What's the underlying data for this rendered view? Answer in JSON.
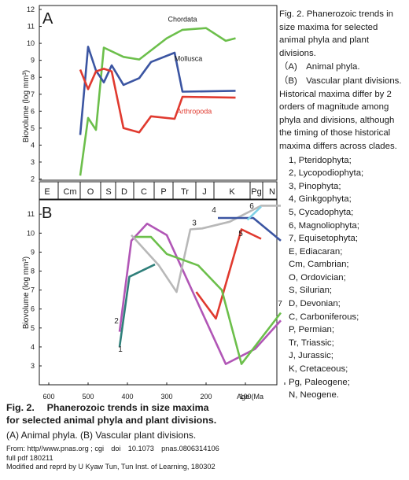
{
  "caption": {
    "title": "Fig. 2. Phanerozoic trends in size maxima for selected animal phyla and plant divisions.",
    "a": "（A)　Animal phyla.",
    "b": "（B)　Vascular plant divisions. Historical maxima differ by 2 orders of magnitude among phyla and divisions, although the timing of those historical maxima differs across clades."
  },
  "legend_items": [
    "1, Pteridophyta;",
    "2, Lycopodiophyta;",
    "3, Pinophyta;",
    "4, Ginkgophyta;",
    "5, Cycadophyta;",
    "6, Magnoliophyta;",
    "7, Equisetophyta;",
    "E, Ediacaran;",
    "Cm, Cambrian;",
    "O, Ordovician;",
    "S, Silurian;",
    "D, Devonian;",
    "C, Carboniferous;",
    "P, Permian;",
    "Tr, Triassic;",
    "J, Jurassic;",
    "K, Cretaceous;",
    "Pg, Paleogene;",
    "N, Neogene."
  ],
  "bottom": {
    "title1": "Fig. 2.　 Phanerozoic trends in size maxima",
    "title2": "for selected animal phyla and plant divisions.",
    "subtitle": "(A) Animal phyla. (B) Vascular plant divisions.",
    "source1": "From: http//www.pnas.org ; cgi　doi　10.1073　pnas.0806314106",
    "source2": "full pdf 180211",
    "source3": "Modified and reprd by U Kyaw Tun, Tun Inst. of Learning, 180302"
  },
  "chart_data": [
    {
      "panel": "A",
      "type": "line",
      "ylabel": "Biovolume (log mm³)",
      "ylim": [
        2,
        12
      ],
      "yticks": [
        2,
        3,
        4,
        5,
        6,
        7,
        8,
        9,
        10,
        11,
        12
      ],
      "series": [
        {
          "name": "Chordata",
          "color": "#6cbf4b",
          "points": [
            [
              520,
              2.2
            ],
            [
              500,
              5.6
            ],
            [
              480,
              4.9
            ],
            [
              460,
              9.75
            ],
            [
              410,
              9.2
            ],
            [
              370,
              9.05
            ],
            [
              300,
              10.3
            ],
            [
              260,
              10.8
            ],
            [
              200,
              10.9
            ],
            [
              150,
              10.15
            ],
            [
              125,
              10.3
            ]
          ]
        },
        {
          "name": "Mollusca",
          "color": "#3b55a2",
          "points": [
            [
              520,
              4.6
            ],
            [
              500,
              9.8
            ],
            [
              480,
              8.4
            ],
            [
              460,
              7.7
            ],
            [
              440,
              8.7
            ],
            [
              410,
              7.55
            ],
            [
              370,
              7.95
            ],
            [
              340,
              8.9
            ],
            [
              280,
              9.45
            ],
            [
              260,
              7.15
            ],
            [
              125,
              7.2
            ]
          ]
        },
        {
          "name": "Arthropoda",
          "color": "#e03a2f",
          "points": [
            [
              520,
              8.45
            ],
            [
              500,
              7.3
            ],
            [
              480,
              8.35
            ],
            [
              460,
              8.5
            ],
            [
              440,
              8.35
            ],
            [
              410,
              5.0
            ],
            [
              370,
              4.75
            ],
            [
              340,
              5.7
            ],
            [
              280,
              5.55
            ],
            [
              260,
              6.85
            ],
            [
              125,
              6.8
            ]
          ]
        }
      ]
    },
    {
      "panel": "B",
      "type": "line",
      "ylabel": "Biovolume (log mm³)",
      "xlabel": "Age (Ma)",
      "ylim": [
        2.5,
        11.5
      ],
      "yticks": [
        3,
        4,
        5,
        6,
        7,
        8,
        9,
        10,
        11
      ],
      "xlim": [
        600,
        0
      ],
      "xticks": [
        600,
        500,
        400,
        300,
        200,
        100,
        0
      ],
      "eras": [
        "E",
        "Cm",
        "O",
        "S",
        "D",
        "C",
        "P",
        "Tr",
        "J",
        "K",
        "Pg",
        "N"
      ],
      "series": [
        {
          "name": "1",
          "color": "#2f7f7a",
          "points": [
            [
              420,
              4.0
            ],
            [
              395,
              7.7
            ],
            [
              330,
              8.35
            ]
          ]
        },
        {
          "name": "2",
          "color": "#b156b6",
          "points": [
            [
              420,
              4.8
            ],
            [
              390,
              9.6
            ],
            [
              350,
              10.5
            ],
            [
              300,
              9.9
            ],
            [
              150,
              3.1
            ],
            [
              75,
              3.9
            ],
            [
              10,
              5.4
            ]
          ]
        },
        {
          "name": "3",
          "color": "#b8b8b8",
          "points": [
            [
              390,
              9.9
            ],
            [
              320,
              8.3
            ],
            [
              275,
              6.9
            ],
            [
              240,
              10.2
            ],
            [
              210,
              10.25
            ],
            [
              140,
              10.6
            ],
            [
              60,
              11.45
            ],
            [
              10,
              11.45
            ]
          ]
        },
        {
          "name": "4",
          "color": "#3b55a2",
          "points": [
            [
              170,
              10.8
            ],
            [
              80,
              10.8
            ],
            [
              10,
              9.6
            ]
          ]
        },
        {
          "name": "5",
          "color": "#e03a2f",
          "points": [
            [
              225,
              6.9
            ],
            [
              175,
              5.5
            ],
            [
              110,
              10.2
            ],
            [
              60,
              9.7
            ]
          ]
        },
        {
          "name": "6",
          "color": "#7fd1e6",
          "points": [
            [
              95,
              10.7
            ],
            [
              60,
              11.4
            ]
          ]
        },
        {
          "name": "7",
          "color": "#6cbf4b",
          "points": [
            [
              380,
              9.8
            ],
            [
              340,
              9.8
            ],
            [
              300,
              8.9
            ],
            [
              220,
              8.3
            ],
            [
              160,
              7.0
            ],
            [
              110,
              3.1
            ],
            [
              10,
              5.8
            ]
          ]
        }
      ]
    }
  ],
  "text_labels": {
    "panelA": "A",
    "panelB": "B",
    "ageLabel": "Age (Ma"
  }
}
